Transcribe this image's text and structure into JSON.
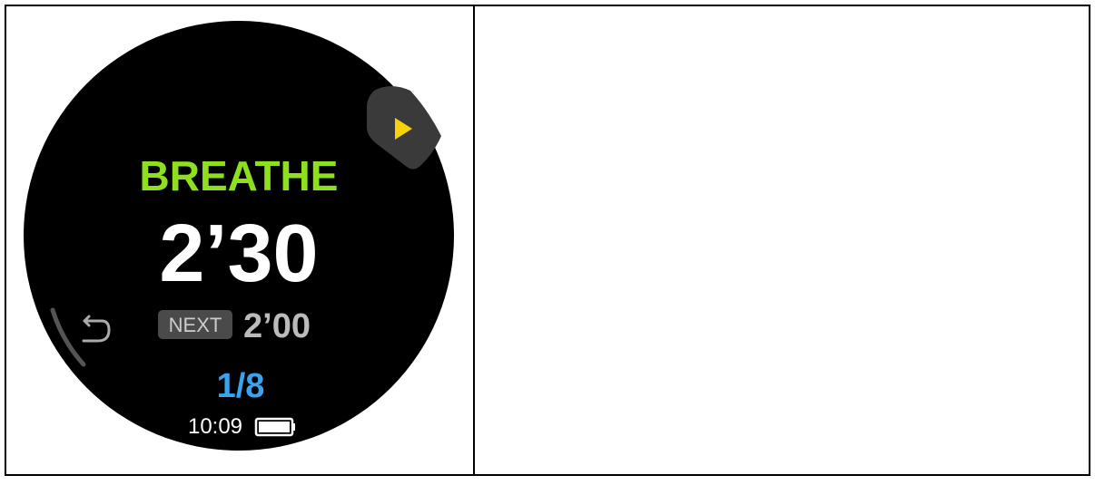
{
  "screen": {
    "phase": "BREATHE",
    "time": "2’30",
    "next_label": "NEXT",
    "next_time": "2’00",
    "progress": "1/8",
    "clock": "10:09"
  }
}
